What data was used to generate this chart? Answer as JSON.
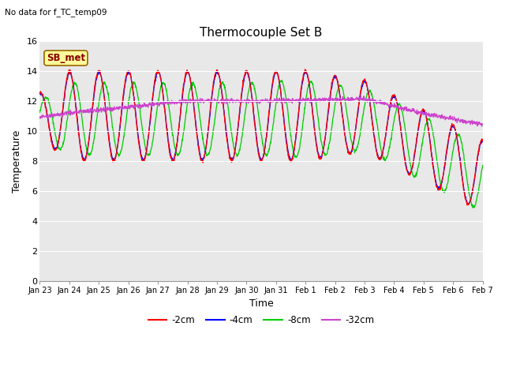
{
  "title": "Thermocouple Set B",
  "subtitle": "No data for f_TC_temp09",
  "xlabel": "Time",
  "ylabel": "Temperature",
  "ylim": [
    0,
    16
  ],
  "yticks": [
    0,
    2,
    4,
    6,
    8,
    10,
    12,
    14,
    16
  ],
  "bg_color": "#e8e8e8",
  "legend_label": "SB_met",
  "legend_bg": "#ffff99",
  "legend_border": "#996600",
  "series_colors": {
    "-2cm": "#ff0000",
    "-4cm": "#0000ff",
    "-8cm": "#00cc00",
    "-32cm": "#cc44cc"
  },
  "xtick_labels": [
    "Jan 23",
    "Jan 24",
    "Jan 25",
    "Jan 26",
    "Jan 27",
    "Jan 28",
    "Jan 29",
    "Jan 30",
    "Jan 31",
    "Feb 1",
    "Feb 2",
    "Feb 3",
    "Feb 4",
    "Feb 5",
    "Feb 6",
    "Feb 7"
  ],
  "n_days": 16,
  "figsize": [
    6.4,
    4.8
  ],
  "dpi": 100
}
